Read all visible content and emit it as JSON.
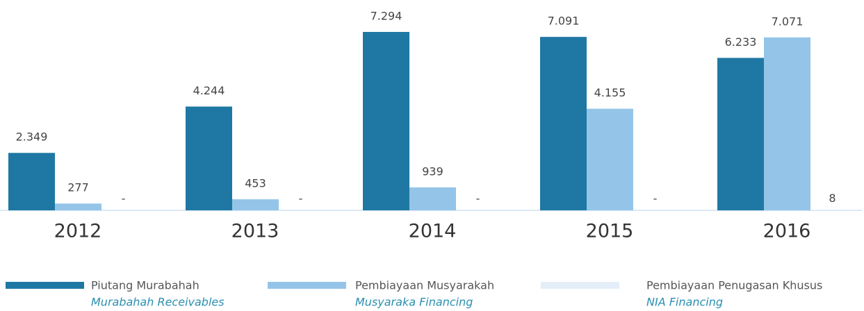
{
  "chart_data": {
    "type": "bar",
    "categories": [
      "2012",
      "2013",
      "2014",
      "2015",
      "2016"
    ],
    "series": [
      {
        "name": "Piutang Murabahah",
        "name_en": "Murabahah Receivables",
        "color": "#1f78a3",
        "values": [
          2349,
          4244,
          7294,
          7091,
          6233
        ],
        "value_labels": [
          "2.349",
          "4.244",
          "7.294",
          "7.091",
          "6.233"
        ]
      },
      {
        "name": "Pembiayaan Musyarakah",
        "name_en": "Musyaraka Financing",
        "color": "#94c5e9",
        "values": [
          277,
          453,
          939,
          4155,
          7071
        ],
        "value_labels": [
          "277",
          "453",
          "939",
          "4.155",
          "7.071"
        ]
      },
      {
        "name": "Pembiayaan Penugasan Khusus",
        "name_en": "NIA Financing",
        "color": "#e4eef8",
        "values": [
          0,
          0,
          0,
          0,
          8
        ],
        "value_labels": [
          "-",
          "-",
          "-",
          "-",
          "8"
        ]
      }
    ],
    "ylim": [
      0,
      7300
    ]
  }
}
